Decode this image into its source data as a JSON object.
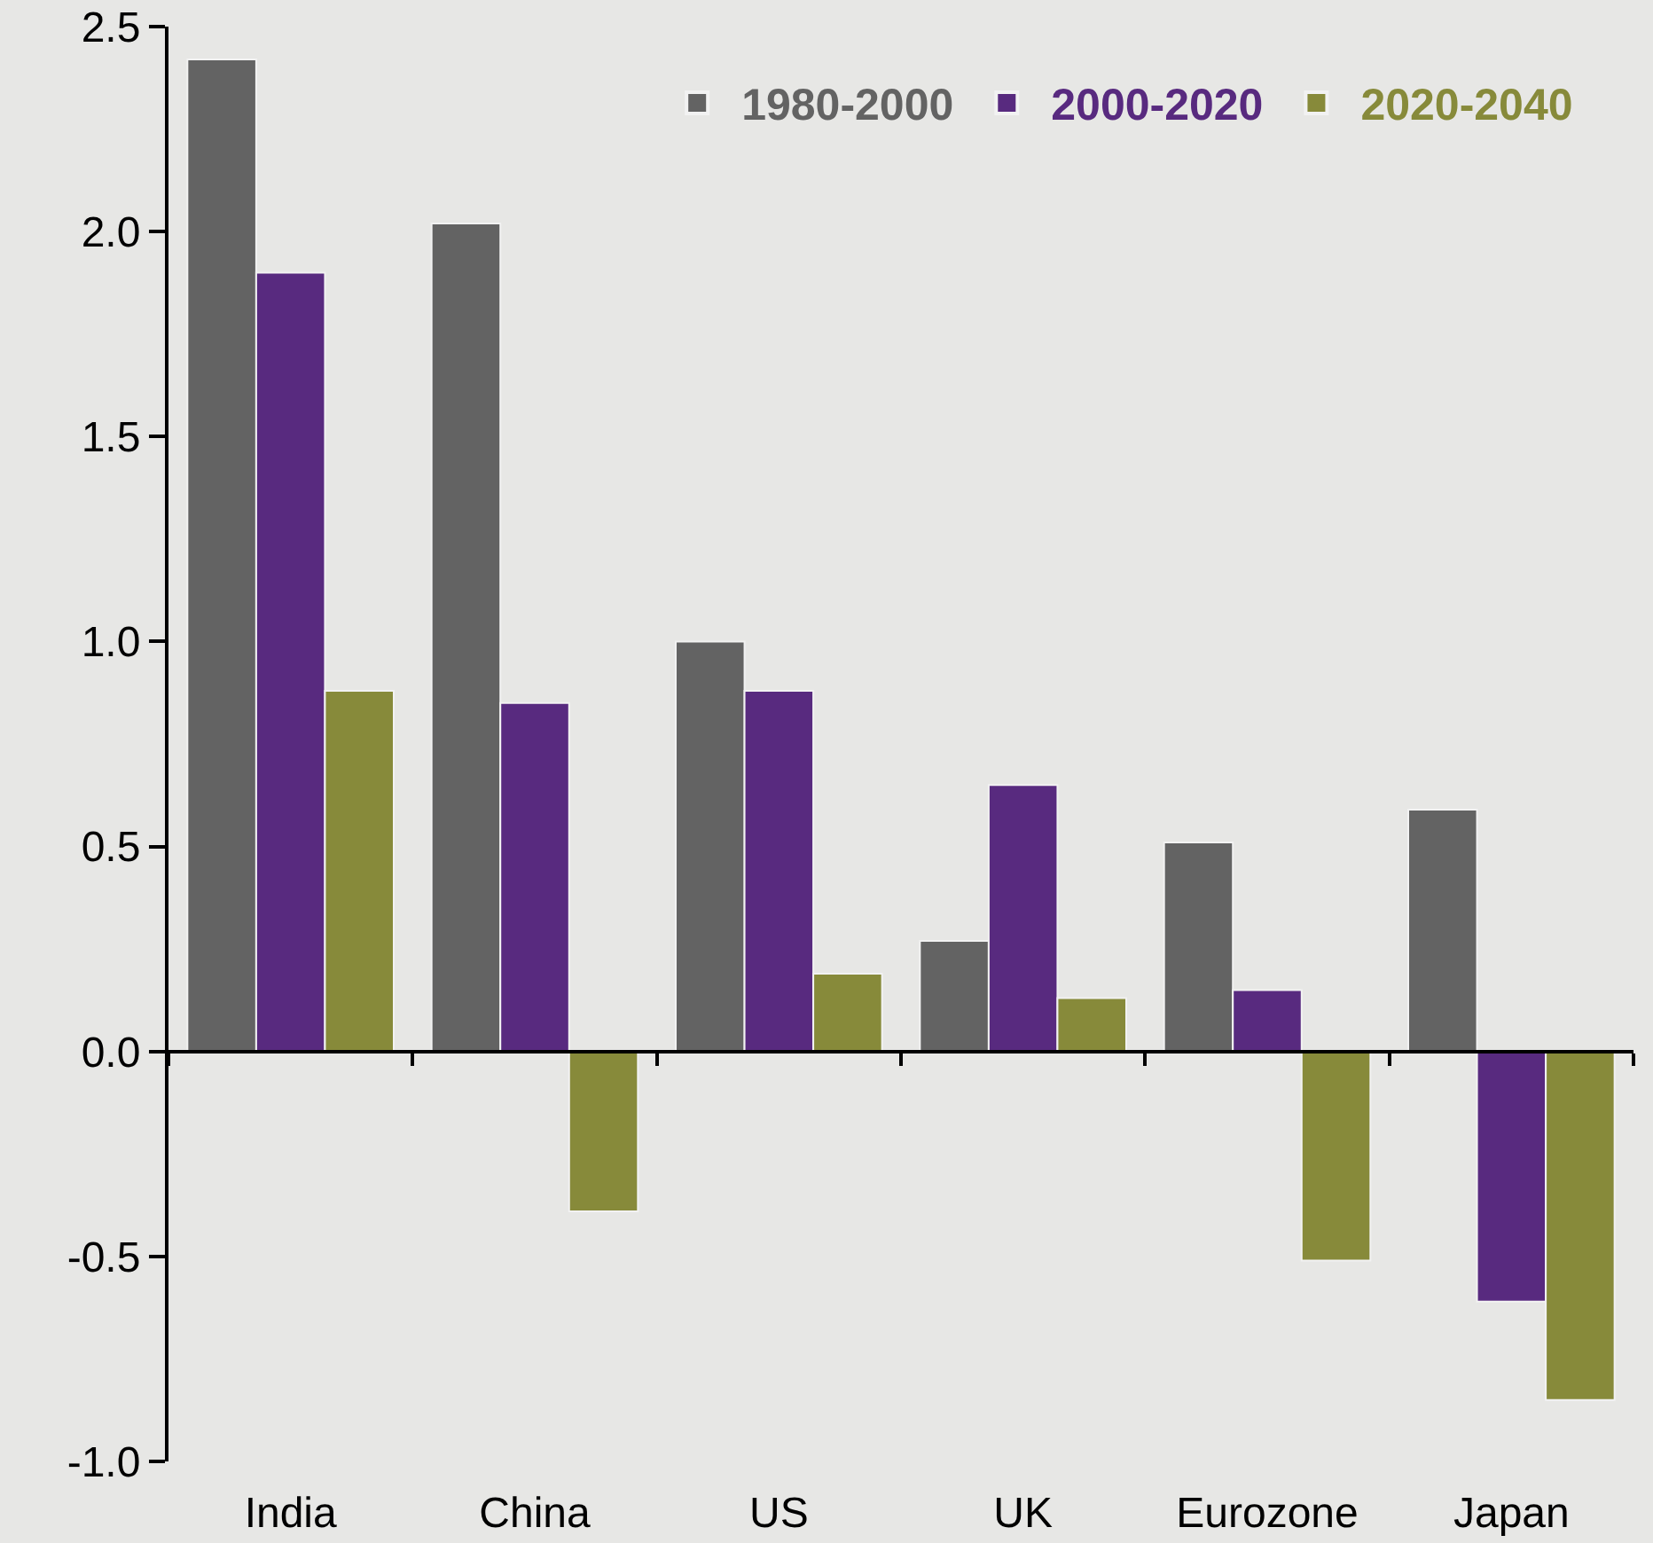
{
  "chart_data": {
    "type": "bar",
    "categories": [
      "India",
      "China",
      "US",
      "UK",
      "Eurozone",
      "Japan"
    ],
    "series": [
      {
        "name": "1980-2000",
        "color": "#636363",
        "values": [
          2.42,
          2.02,
          1.0,
          0.27,
          0.51,
          0.59
        ]
      },
      {
        "name": "2000-2020",
        "color": "#582a7f",
        "values": [
          1.9,
          0.85,
          0.88,
          0.65,
          0.15,
          -0.61
        ]
      },
      {
        "name": "2020-2040",
        "color": "#878a3a",
        "values": [
          0.88,
          -0.39,
          0.19,
          0.13,
          -0.51,
          -0.85
        ]
      }
    ],
    "ylim": [
      -1,
      2.5
    ],
    "yticks": [
      2.5,
      {
        "value": 2,
        "label": "2.0"
      },
      {
        "value": 1.5,
        "label": "1.5"
      },
      {
        "value": 1,
        "label": "1.0"
      },
      {
        "value": 0.5,
        "label": "0.5"
      },
      {
        "value": 0,
        "label": "0.0"
      },
      -0.5,
      {
        "value": -1,
        "label": "-1.0"
      }
    ],
    "legend": "top right"
  }
}
